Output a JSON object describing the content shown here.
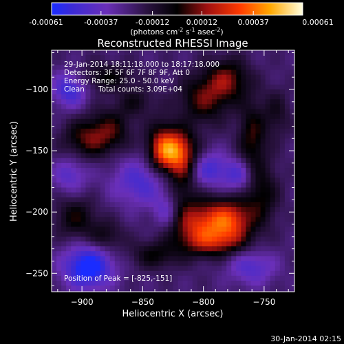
{
  "chart_data": {
    "type": "heatmap",
    "title": "Reconstructed RHESSI Image",
    "xlabel": "Heliocentric X (arcsec)",
    "ylabel": "Heliocentric Y (arcsec)",
    "xlim": [
      -925,
      -725
    ],
    "ylim": [
      -265,
      -68
    ],
    "x_ticks": [
      -900,
      -850,
      -800,
      -750
    ],
    "y_ticks": [
      -100,
      -150,
      -200,
      -250
    ],
    "colorbar": {
      "min": -0.00061,
      "max": 0.00061,
      "ticks": [
        -0.00061,
        -0.00037,
        -0.00012,
        0.00012,
        0.00037,
        0.00061
      ],
      "tick_labels": [
        "-0.00061",
        "-0.00037",
        "-0.00012",
        "0.00012",
        "0.00037",
        "0.00061"
      ],
      "unit_text": "(photons cm",
      "unit_sup1": "-2",
      "unit_mid": " s",
      "unit_sup2": "-1",
      "unit_mid2": " asec",
      "unit_sup3": "-2",
      "unit_close": ")"
    },
    "annotations": {
      "time_range": "29-Jan-2014 18:11:18.000 to 18:17:18.000",
      "detectors": "Detectors: 3F 5F 6F 7F 8F 9F, Att 0",
      "energy": "Energy Range: 25.0 - 50.0 keV",
      "method": "Clean",
      "counts": "Total counts: 3.09E+04",
      "peak": "Position of Peak = [-825,-151]"
    },
    "peak": {
      "x": -825,
      "y": -151
    },
    "sources": [
      {
        "x": -825,
        "y": -150,
        "sx": 12,
        "sy": 12,
        "amp": 0.00055
      },
      {
        "x": -835,
        "y": -150,
        "sx": 8,
        "sy": 18,
        "amp": 0.0002
      },
      {
        "x": -818,
        "y": -172,
        "sx": 8,
        "sy": 18,
        "amp": 0.00022
      },
      {
        "x": -805,
        "y": -210,
        "sx": 16,
        "sy": 14,
        "amp": 0.0004
      },
      {
        "x": -778,
        "y": -207,
        "sx": 13,
        "sy": 12,
        "amp": 0.00045
      },
      {
        "x": -790,
        "y": -225,
        "sx": 18,
        "sy": 8,
        "amp": 0.00025
      },
      {
        "x": -800,
        "y": -108,
        "sx": 14,
        "sy": 14,
        "amp": 0.00028
      },
      {
        "x": -780,
        "y": -92,
        "sx": 12,
        "sy": 12,
        "amp": 0.0003
      },
      {
        "x": -760,
        "y": -140,
        "sx": 8,
        "sy": 22,
        "amp": 0.00025
      },
      {
        "x": -752,
        "y": -185,
        "sx": 10,
        "sy": 18,
        "amp": 0.00022
      },
      {
        "x": -740,
        "y": -120,
        "sx": 8,
        "sy": 14,
        "amp": 0.00015
      },
      {
        "x": -895,
        "y": -140,
        "sx": 14,
        "sy": 11,
        "amp": 0.00028
      },
      {
        "x": -875,
        "y": -132,
        "sx": 12,
        "sy": 13,
        "amp": 0.0002
      },
      {
        "x": -905,
        "y": -205,
        "sx": 12,
        "sy": 12,
        "amp": 0.00022
      },
      {
        "x": -880,
        "y": -220,
        "sx": 10,
        "sy": 9,
        "amp": 0.00018
      },
      {
        "x": -880,
        "y": -90,
        "sx": 16,
        "sy": 8,
        "amp": 0.0002
      },
      {
        "x": -840,
        "y": -235,
        "sx": 14,
        "sy": 8,
        "amp": 0.0002
      },
      {
        "x": -855,
        "y": -110,
        "sx": 10,
        "sy": 8,
        "amp": 0.00015
      },
      {
        "x": -850,
        "y": -175,
        "sx": 18,
        "sy": 14,
        "amp": -0.00025
      },
      {
        "x": -895,
        "y": -245,
        "sx": 14,
        "sy": 12,
        "amp": -0.00045
      },
      {
        "x": -910,
        "y": -100,
        "sx": 10,
        "sy": 10,
        "amp": -0.0003
      },
      {
        "x": -795,
        "y": -165,
        "sx": 10,
        "sy": 10,
        "amp": -0.00025
      },
      {
        "x": -770,
        "y": -170,
        "sx": 10,
        "sy": 10,
        "amp": -0.00025
      },
      {
        "x": -760,
        "y": -245,
        "sx": 14,
        "sy": 10,
        "amp": -0.00022
      },
      {
        "x": -910,
        "y": -170,
        "sx": 10,
        "sy": 10,
        "amp": -0.0002
      },
      {
        "x": -830,
        "y": -200,
        "sx": 8,
        "sy": 10,
        "amp": -0.0002
      }
    ]
  },
  "footer": {
    "date": "30-Jan-2014 02:15"
  }
}
